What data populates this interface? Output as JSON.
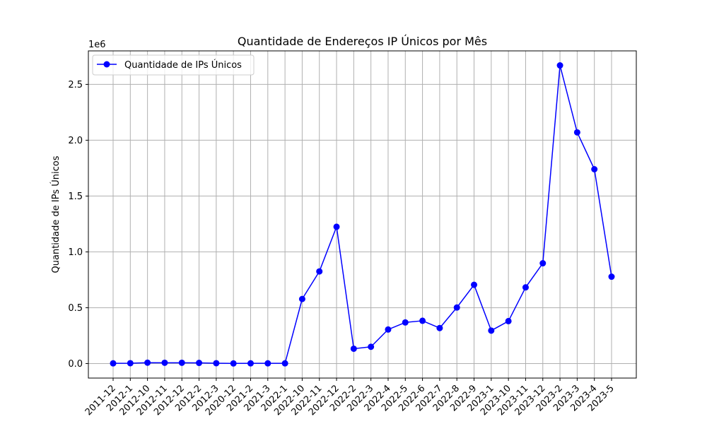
{
  "chart_data": {
    "type": "line",
    "title": "Quantidade de Endereços IP Únicos por Mês",
    "xlabel": "",
    "ylabel": "Quantidade de IPs Únicos",
    "y_multiplier_label": "1e6",
    "y_scale": 1000000,
    "categories": [
      "2011-12",
      "2012-1",
      "2012-10",
      "2012-11",
      "2012-12",
      "2012-2",
      "2012-3",
      "2020-12",
      "2021-2",
      "2021-3",
      "2022-1",
      "2022-10",
      "2022-11",
      "2022-12",
      "2022-2",
      "2022-3",
      "2022-4",
      "2022-5",
      "2022-6",
      "2022-7",
      "2022-8",
      "2022-9",
      "2023-1",
      "2023-10",
      "2023-11",
      "2023-12",
      "2023-2",
      "2023-3",
      "2023-4",
      "2023-5"
    ],
    "series": [
      {
        "name": "Quantidade de IPs Únicos",
        "color": "#0000ff",
        "values": [
          2000,
          3000,
          8000,
          7000,
          7000,
          6000,
          3000,
          1000,
          2000,
          2000,
          2000,
          578000,
          825000,
          1225000,
          133000,
          150000,
          305000,
          368000,
          383000,
          318000,
          502000,
          705000,
          295000,
          380000,
          682000,
          898000,
          2670000,
          2070000,
          1740000,
          778000
        ]
      }
    ],
    "ylim": [
      -130000,
      2800000
    ],
    "yticks": [
      0,
      500000,
      1000000,
      1500000,
      2000000,
      2500000
    ],
    "ytick_labels": [
      "0.0",
      "0.5",
      "1.0",
      "1.5",
      "2.0",
      "2.5"
    ],
    "grid": true,
    "legend": "top-left"
  }
}
